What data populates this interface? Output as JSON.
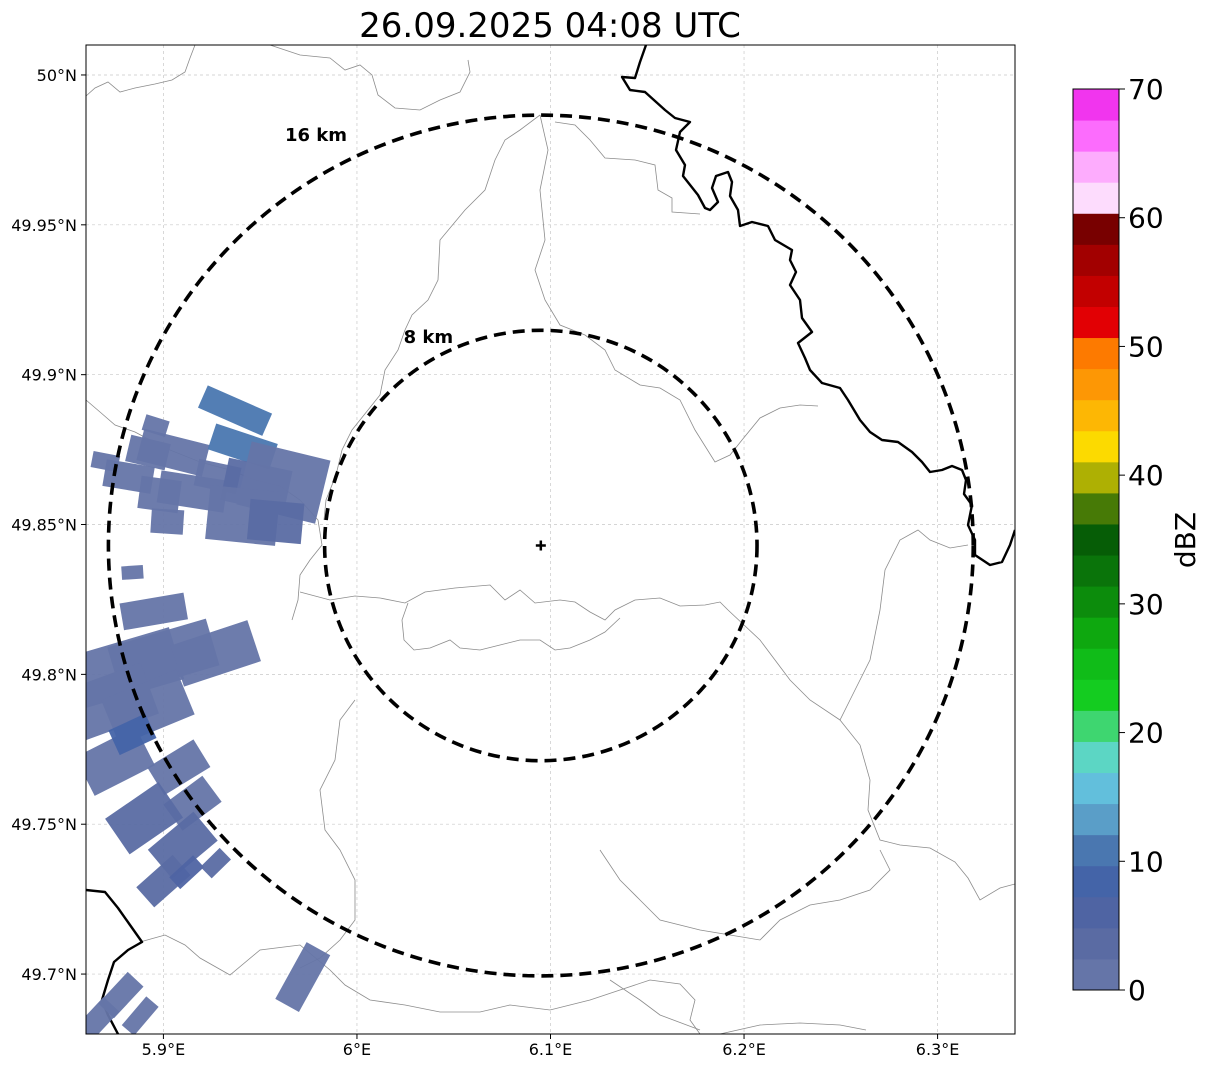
{
  "title": "26.09.2025 04:08 UTC",
  "map": {
    "lon_range": [
      5.86,
      6.34
    ],
    "lat_range": [
      49.68,
      50.01
    ],
    "lon_ticks": [
      {
        "value": 5.9,
        "label": "5.9°E"
      },
      {
        "value": 6.0,
        "label": "6°E"
      },
      {
        "value": 6.1,
        "label": "6.1°E"
      },
      {
        "value": 6.2,
        "label": "6.2°E"
      },
      {
        "value": 6.3,
        "label": "6.3°E"
      }
    ],
    "lat_ticks": [
      {
        "value": 49.7,
        "label": "49.7°N"
      },
      {
        "value": 49.75,
        "label": "49.75°N"
      },
      {
        "value": 49.8,
        "label": "49.8°N"
      },
      {
        "value": 49.85,
        "label": "49.85°N"
      },
      {
        "value": 49.9,
        "label": "49.9°N"
      },
      {
        "value": 49.95,
        "label": "49.95°N"
      },
      {
        "value": 50.0,
        "label": "50°N"
      }
    ],
    "radar_center": {
      "lon": 6.095,
      "lat": 49.843
    },
    "range_rings": [
      {
        "radius_km": 8,
        "label": "8 km"
      },
      {
        "radius_km": 16,
        "label": "16 km"
      }
    ],
    "gridlines": true
  },
  "colorbar": {
    "label": "dBZ",
    "min": 0,
    "max": 70,
    "ticks": [
      {
        "value": 0,
        "label": "0"
      },
      {
        "value": 10,
        "label": "10"
      },
      {
        "value": 20,
        "label": "20"
      },
      {
        "value": 30,
        "label": "30"
      },
      {
        "value": 40,
        "label": "40"
      },
      {
        "value": 50,
        "label": "50"
      },
      {
        "value": 60,
        "label": "60"
      },
      {
        "value": 70,
        "label": "70"
      }
    ],
    "colors": [
      "#6575a8",
      "#5a6ba3",
      "#4f64a3",
      "#4464a8",
      "#4a77b0",
      "#5a9ec8",
      "#62bfdc",
      "#5cd6c4",
      "#3ed670",
      "#14cc20",
      "#10bc18",
      "#0ea80f",
      "#0c8c0c",
      "#0a740a",
      "#065d06",
      "#477a06",
      "#aeb003",
      "#fcda00",
      "#fdb704",
      "#fd9705",
      "#fd7a00",
      "#e20004",
      "#c20000",
      "#a20000",
      "#780000",
      "#fddcfd",
      "#fdacfd",
      "#fc6cfd",
      "#f135ee"
    ]
  },
  "echoes": [
    {
      "lon": 5.905,
      "lat": 49.874,
      "len_km": 2.5,
      "wid_km": 1.2,
      "dbz": 2
    },
    {
      "lon": 5.915,
      "lat": 49.861,
      "len_km": 2.5,
      "wid_km": 1.2,
      "dbz": 2
    },
    {
      "lon": 5.937,
      "lat": 49.888,
      "len_km": 2.6,
      "wid_km": 0.9,
      "dbz": 12
    },
    {
      "lon": 5.941,
      "lat": 49.876,
      "len_km": 2.4,
      "wid_km": 1.0,
      "dbz": 10
    },
    {
      "lon": 5.928,
      "lat": 49.866,
      "len_km": 1.6,
      "wid_km": 1.0,
      "dbz": 2
    },
    {
      "lon": 5.948,
      "lat": 49.863,
      "len_km": 2.4,
      "wid_km": 1.6,
      "dbz": 3
    },
    {
      "lon": 5.962,
      "lat": 49.864,
      "len_km": 3.0,
      "wid_km": 2.4,
      "dbz": 2
    },
    {
      "lon": 5.941,
      "lat": 49.853,
      "len_km": 2.6,
      "wid_km": 2.0,
      "dbz": 2
    },
    {
      "lon": 5.958,
      "lat": 49.851,
      "len_km": 2.0,
      "wid_km": 1.5,
      "dbz": 3
    },
    {
      "lon": 5.882,
      "lat": 49.866,
      "len_km": 1.8,
      "wid_km": 1.0,
      "dbz": 2
    },
    {
      "lon": 5.892,
      "lat": 49.874,
      "len_km": 1.5,
      "wid_km": 1.0,
      "dbz": 2
    },
    {
      "lon": 5.898,
      "lat": 49.86,
      "len_km": 1.5,
      "wid_km": 1.2,
      "dbz": 2
    },
    {
      "lon": 5.902,
      "lat": 49.851,
      "len_km": 1.2,
      "wid_km": 0.9,
      "dbz": 2
    },
    {
      "lon": 5.87,
      "lat": 49.871,
      "len_km": 1.0,
      "wid_km": 0.6,
      "dbz": 2
    },
    {
      "lon": 5.896,
      "lat": 49.883,
      "len_km": 0.9,
      "wid_km": 0.6,
      "dbz": 2
    },
    {
      "lon": 5.884,
      "lat": 49.834,
      "len_km": 0.8,
      "wid_km": 0.5,
      "dbz": 2
    },
    {
      "lon": 5.88,
      "lat": 49.802,
      "len_km": 4.0,
      "wid_km": 2.0,
      "dbz": 2
    },
    {
      "lon": 5.9,
      "lat": 49.806,
      "len_km": 3.8,
      "wid_km": 1.8,
      "dbz": 2
    },
    {
      "lon": 5.927,
      "lat": 49.807,
      "len_km": 3.0,
      "wid_km": 1.6,
      "dbz": 2
    },
    {
      "lon": 5.87,
      "lat": 49.79,
      "len_km": 3.5,
      "wid_km": 2.0,
      "dbz": 2
    },
    {
      "lon": 5.892,
      "lat": 49.789,
      "len_km": 3.0,
      "wid_km": 1.8,
      "dbz": 2
    },
    {
      "lon": 5.875,
      "lat": 49.771,
      "len_km": 2.5,
      "wid_km": 1.6,
      "dbz": 2
    },
    {
      "lon": 5.895,
      "lat": 49.821,
      "len_km": 2.4,
      "wid_km": 1.0,
      "dbz": 2
    },
    {
      "lon": 5.884,
      "lat": 49.78,
      "len_km": 1.5,
      "wid_km": 1.0,
      "dbz": 8
    },
    {
      "lon": 5.908,
      "lat": 49.769,
      "len_km": 2.0,
      "wid_km": 1.2,
      "dbz": 2
    },
    {
      "lon": 5.915,
      "lat": 49.757,
      "len_km": 1.8,
      "wid_km": 1.2,
      "dbz": 2
    },
    {
      "lon": 5.89,
      "lat": 49.752,
      "len_km": 2.4,
      "wid_km": 1.6,
      "dbz": 3
    },
    {
      "lon": 5.91,
      "lat": 49.743,
      "len_km": 2.2,
      "wid_km": 1.4,
      "dbz": 4
    },
    {
      "lon": 5.9,
      "lat": 49.731,
      "len_km": 1.8,
      "wid_km": 1.0,
      "dbz": 3
    },
    {
      "lon": 5.912,
      "lat": 49.734,
      "len_km": 1.2,
      "wid_km": 0.6,
      "dbz": 5
    },
    {
      "lon": 5.927,
      "lat": 49.737,
      "len_km": 1.0,
      "wid_km": 0.6,
      "dbz": 4
    },
    {
      "lon": 5.972,
      "lat": 49.699,
      "len_km": 2.4,
      "wid_km": 1.0,
      "dbz": 2
    },
    {
      "lon": 5.878,
      "lat": 49.693,
      "len_km": 1.6,
      "wid_km": 0.8,
      "dbz": 2
    },
    {
      "lon": 5.866,
      "lat": 49.685,
      "len_km": 1.5,
      "wid_km": 0.8,
      "dbz": 2
    },
    {
      "lon": 5.888,
      "lat": 49.686,
      "len_km": 1.4,
      "wid_km": 0.6,
      "dbz": 2
    }
  ]
}
